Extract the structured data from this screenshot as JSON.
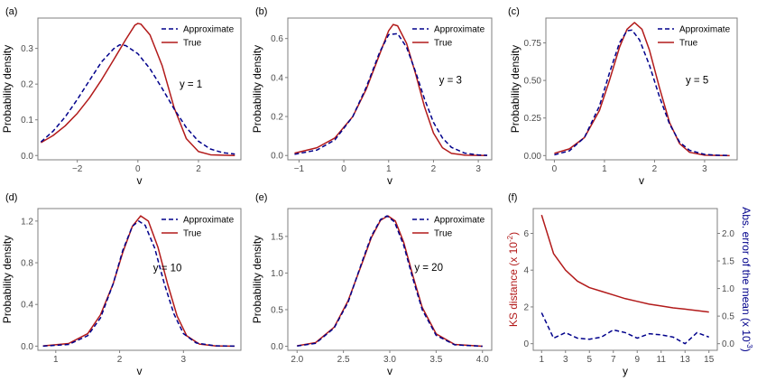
{
  "chart_data": [
    {
      "panel_label": "(a)",
      "type": "line",
      "xlabel": "v",
      "ylabel": "Probability density",
      "xlim": [
        -3.3,
        3.4
      ],
      "ylim": [
        -0.012,
        0.385
      ],
      "xticks": [
        -2,
        0,
        2
      ],
      "yticks": [
        0.0,
        0.1,
        0.2,
        0.3
      ],
      "ytick_labels": [
        "0.0",
        "0.1",
        "0.2",
        "0.3"
      ],
      "annotation": "y =  1",
      "annotation_pos": [
        1.75,
        0.19
      ],
      "legend_position": "top-right",
      "series": [
        {
          "name": "Approximate",
          "style": "dashed",
          "color": "#00008b",
          "x": [
            -3.2,
            -2.8,
            -2.4,
            -2.0,
            -1.6,
            -1.2,
            -0.8,
            -0.6,
            -0.4,
            0.0,
            0.4,
            0.8,
            1.2,
            1.6,
            2.0,
            2.4,
            2.8,
            3.2
          ],
          "y": [
            0.038,
            0.068,
            0.108,
            0.157,
            0.21,
            0.262,
            0.299,
            0.31,
            0.308,
            0.285,
            0.243,
            0.188,
            0.13,
            0.078,
            0.04,
            0.018,
            0.008,
            0.004
          ]
        },
        {
          "name": "True",
          "style": "solid",
          "color": "#b21a1a",
          "x": [
            -3.2,
            -2.8,
            -2.4,
            -2.0,
            -1.6,
            -1.2,
            -0.8,
            -0.4,
            -0.1,
            0.0,
            0.1,
            0.4,
            0.8,
            1.2,
            1.6,
            2.0,
            2.4,
            3.2
          ],
          "y": [
            0.036,
            0.056,
            0.083,
            0.118,
            0.161,
            0.212,
            0.268,
            0.325,
            0.365,
            0.37,
            0.368,
            0.338,
            0.252,
            0.133,
            0.047,
            0.011,
            0.002,
            0.0
          ]
        }
      ]
    },
    {
      "panel_label": "(b)",
      "type": "line",
      "xlabel": "v",
      "ylabel": "Probability density",
      "xlim": [
        -1.25,
        3.3
      ],
      "ylim": [
        -0.022,
        0.705
      ],
      "xticks": [
        -1,
        0,
        1,
        2,
        3
      ],
      "yticks": [
        0.0,
        0.2,
        0.4,
        0.6
      ],
      "ytick_labels": [
        "0.0",
        "0.2",
        "0.4",
        "0.6"
      ],
      "annotation": "y =  3",
      "annotation_pos": [
        2.38,
        0.37
      ],
      "legend_position": "top-right",
      "series": [
        {
          "name": "Approximate",
          "style": "dashed",
          "color": "#00008b",
          "x": [
            -1.1,
            -0.6,
            -0.2,
            0.2,
            0.5,
            0.8,
            1.0,
            1.2,
            1.4,
            1.6,
            1.8,
            2.0,
            2.2,
            2.4,
            2.7,
            3.0,
            3.2
          ],
          "y": [
            0.006,
            0.028,
            0.08,
            0.2,
            0.35,
            0.53,
            0.62,
            0.625,
            0.555,
            0.43,
            0.29,
            0.17,
            0.09,
            0.042,
            0.012,
            0.003,
            0.001
          ]
        },
        {
          "name": "True",
          "style": "solid",
          "color": "#b21a1a",
          "x": [
            -1.1,
            -0.6,
            -0.2,
            0.2,
            0.5,
            0.8,
            1.0,
            1.1,
            1.2,
            1.4,
            1.6,
            1.8,
            2.0,
            2.2,
            2.4,
            2.7,
            3.2
          ],
          "y": [
            0.012,
            0.04,
            0.09,
            0.2,
            0.34,
            0.52,
            0.64,
            0.672,
            0.665,
            0.575,
            0.42,
            0.25,
            0.115,
            0.04,
            0.011,
            0.002,
            0.0
          ]
        }
      ]
    },
    {
      "panel_label": "(c)",
      "type": "line",
      "xlabel": "v",
      "ylabel": "Probability density",
      "xlim": [
        -0.17,
        3.65
      ],
      "ylim": [
        -0.028,
        0.915
      ],
      "xticks": [
        0,
        1,
        2,
        3
      ],
      "yticks": [
        0.0,
        0.25,
        0.5,
        0.75
      ],
      "ytick_labels": [
        "0.00",
        "0.25",
        "0.50",
        "0.75"
      ],
      "annotation": "y =  5",
      "annotation_pos": [
        2.85,
        0.48
      ],
      "legend_position": "top-right",
      "series": [
        {
          "name": "Approximate",
          "style": "dashed",
          "color": "#00008b",
          "x": [
            0.0,
            0.3,
            0.6,
            0.9,
            1.1,
            1.3,
            1.45,
            1.55,
            1.7,
            1.9,
            2.1,
            2.3,
            2.5,
            2.7,
            3.0,
            3.2,
            3.5
          ],
          "y": [
            0.005,
            0.032,
            0.12,
            0.33,
            0.55,
            0.75,
            0.83,
            0.835,
            0.77,
            0.6,
            0.39,
            0.21,
            0.09,
            0.035,
            0.008,
            0.003,
            0.001
          ]
        },
        {
          "name": "True",
          "style": "solid",
          "color": "#b21a1a",
          "x": [
            0.0,
            0.3,
            0.6,
            0.9,
            1.1,
            1.3,
            1.45,
            1.6,
            1.75,
            1.9,
            2.1,
            2.3,
            2.5,
            2.7,
            3.0,
            3.5
          ],
          "y": [
            0.015,
            0.045,
            0.12,
            0.3,
            0.5,
            0.72,
            0.84,
            0.885,
            0.84,
            0.7,
            0.45,
            0.22,
            0.08,
            0.022,
            0.003,
            0.0
          ]
        }
      ]
    },
    {
      "panel_label": "(d)",
      "type": "line",
      "xlabel": "v",
      "ylabel": "Probability density",
      "xlim": [
        0.72,
        3.9
      ],
      "ylim": [
        -0.04,
        1.32
      ],
      "xticks": [
        1,
        2,
        3
      ],
      "yticks": [
        0.0,
        0.4,
        0.8,
        1.2
      ],
      "ytick_labels": [
        "0.0",
        "0.4",
        "0.8",
        "1.2"
      ],
      "annotation": "y =  10",
      "annotation_pos": [
        2.75,
        0.72
      ],
      "legend_position": "top-right",
      "series": [
        {
          "name": "Approximate",
          "style": "dashed",
          "color": "#00008b",
          "x": [
            0.8,
            1.2,
            1.5,
            1.7,
            1.9,
            2.05,
            2.2,
            2.3,
            2.4,
            2.55,
            2.7,
            2.85,
            3.0,
            3.2,
            3.5,
            3.8
          ],
          "y": [
            0.0,
            0.016,
            0.1,
            0.27,
            0.6,
            0.92,
            1.15,
            1.2,
            1.16,
            0.94,
            0.6,
            0.31,
            0.12,
            0.03,
            0.003,
            0.0
          ]
        },
        {
          "name": "True",
          "style": "solid",
          "color": "#b21a1a",
          "x": [
            0.8,
            1.2,
            1.5,
            1.7,
            1.9,
            2.05,
            2.2,
            2.33,
            2.45,
            2.6,
            2.75,
            2.9,
            3.05,
            3.25,
            3.5,
            3.8
          ],
          "y": [
            0.002,
            0.025,
            0.12,
            0.3,
            0.6,
            0.9,
            1.15,
            1.25,
            1.2,
            0.95,
            0.6,
            0.29,
            0.1,
            0.02,
            0.002,
            0.0
          ]
        }
      ]
    },
    {
      "panel_label": "(e)",
      "type": "line",
      "xlabel": "v",
      "ylabel": "Probability density",
      "xlim": [
        1.9,
        4.1
      ],
      "ylim": [
        -0.055,
        1.88
      ],
      "xticks": [
        2.0,
        2.5,
        3.0,
        3.5,
        4.0
      ],
      "yticks": [
        0.0,
        0.5,
        1.0,
        1.5
      ],
      "ytick_labels": [
        "0.0",
        "0.5",
        "1.0",
        "1.5"
      ],
      "annotation": "y =  20",
      "annotation_pos": [
        3.42,
        1.03
      ],
      "legend_position": "top-right",
      "series": [
        {
          "name": "Approximate",
          "style": "dashed",
          "color": "#00008b",
          "x": [
            2.0,
            2.2,
            2.4,
            2.55,
            2.7,
            2.8,
            2.9,
            2.97,
            3.05,
            3.15,
            3.25,
            3.35,
            3.5,
            3.7,
            4.0
          ],
          "y": [
            0.004,
            0.04,
            0.25,
            0.6,
            1.15,
            1.5,
            1.73,
            1.78,
            1.7,
            1.38,
            0.92,
            0.5,
            0.15,
            0.02,
            0.0
          ]
        },
        {
          "name": "True",
          "style": "solid",
          "color": "#b21a1a",
          "x": [
            2.0,
            2.2,
            2.4,
            2.55,
            2.7,
            2.8,
            2.9,
            2.98,
            3.06,
            3.15,
            3.25,
            3.35,
            3.5,
            3.7,
            4.0
          ],
          "y": [
            0.006,
            0.05,
            0.26,
            0.62,
            1.13,
            1.48,
            1.72,
            1.78,
            1.71,
            1.42,
            0.96,
            0.53,
            0.17,
            0.025,
            0.0
          ]
        }
      ]
    },
    {
      "panel_label": "(f)",
      "type": "line",
      "xlabel": "y",
      "ylabel": "KS distance (x 10",
      "ylabel_exp": "-2",
      "ylabel_close": ")",
      "ylabel_color": "#b21a1a",
      "y2label": "Abs. error of the mean (x 10",
      "y2label_exp": "-3",
      "y2label_close": ")",
      "y2label_color": "#00008b",
      "xlim": [
        0.3,
        15.7
      ],
      "ylim": [
        -0.36,
        7.35
      ],
      "y2lim": [
        -0.12,
        2.45
      ],
      "xticks": [
        1,
        3,
        5,
        7,
        9,
        11,
        13,
        15
      ],
      "yticks": [
        0,
        2,
        4,
        6
      ],
      "ytick_labels": [
        "0",
        "2",
        "4",
        "6"
      ],
      "y2ticks": [
        0.0,
        0.5,
        1.0,
        1.5,
        2.0
      ],
      "y2tick_labels": [
        "0.0",
        "0.5",
        "1.0",
        "1.5",
        "2.0"
      ],
      "series": [
        {
          "name": "KS distance",
          "style": "solid",
          "color": "#b21a1a",
          "axis": "left",
          "x": [
            1,
            2,
            3,
            4,
            5,
            6,
            7,
            8,
            9,
            10,
            11,
            12,
            13,
            14,
            15
          ],
          "y": [
            7.0,
            4.9,
            4.0,
            3.4,
            3.05,
            2.85,
            2.65,
            2.45,
            2.3,
            2.15,
            2.05,
            1.95,
            1.88,
            1.8,
            1.72
          ]
        },
        {
          "name": "Abs. error of the mean",
          "style": "dashed",
          "color": "#00008b",
          "axis": "right",
          "x": [
            1,
            2,
            3,
            4,
            5,
            6,
            7,
            8,
            9,
            10,
            11,
            12,
            13,
            14,
            15
          ],
          "y": [
            0.56,
            0.1,
            0.2,
            0.1,
            0.08,
            0.12,
            0.25,
            0.2,
            0.1,
            0.18,
            0.16,
            0.12,
            0.0,
            0.2,
            0.12
          ]
        }
      ]
    }
  ]
}
